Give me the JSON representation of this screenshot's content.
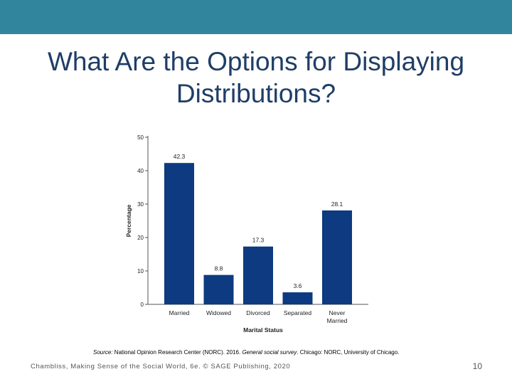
{
  "slide": {
    "title": "What Are the Options for Displaying Distributions?",
    "footer": "Chambliss, Making Sense of the Social World, 6e. © SAGE Publishing, 2020",
    "page_number": "10"
  },
  "source": {
    "label": "Source:",
    "text_1": " National Opinion Research Center (NORC). 2016. ",
    "italic": "General social survey",
    "text_2": ". Chicago: NORC, University of Chicago."
  },
  "colors": {
    "top_bar": "#31859c",
    "title": "#1f3e66",
    "bar": "#0d3a80"
  },
  "chart_data": {
    "type": "bar",
    "categories": [
      [
        "Married"
      ],
      [
        "Widowed"
      ],
      [
        "Divorced"
      ],
      [
        "Separated"
      ],
      [
        "Never",
        "Married"
      ]
    ],
    "values": [
      42.3,
      8.8,
      17.3,
      3.6,
      28.1
    ],
    "value_labels": [
      "42.3",
      "8.8",
      "17.3",
      "3.6",
      "28.1"
    ],
    "xlabel": "Marital Status",
    "ylabel": "Percentage",
    "ylim": [
      0,
      50
    ],
    "yticks": [
      0,
      10,
      20,
      30,
      40,
      50
    ],
    "grid": false
  }
}
